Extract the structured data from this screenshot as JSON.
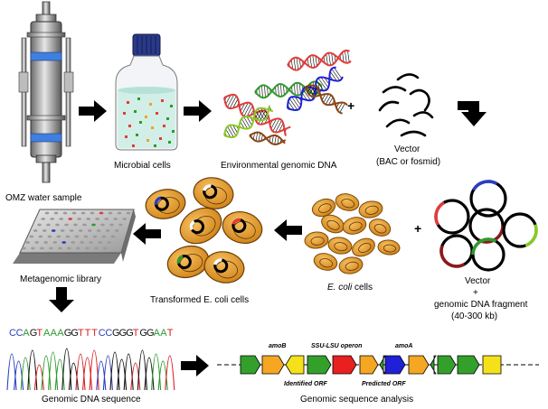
{
  "labels": {
    "omz_sample": "OMZ water sample",
    "microbial_cells": "Microbial cells",
    "env_dna": "Environmental genomic DNA",
    "plus": "+",
    "vector_title": "Vector",
    "vector_sub": "(BAC or fosmid)",
    "metagenomic_library": "Metagenomic library",
    "transformed_cells": "Transformed E. coli cells",
    "ecoli_italic": "E. coli",
    "ecoli_rest": " cells",
    "vector2_title": "Vector",
    "vector2_plus": "+",
    "vector2_fragment": "genomic DNA fragment",
    "vector2_size": "(40-300 kb)",
    "genomic_sequence": "Genomic DNA sequence",
    "sequence_analysis": "Genomic sequence analysis"
  },
  "sequence": {
    "letters": [
      "C",
      "C",
      "A",
      "G",
      "T",
      "A",
      "A",
      "A",
      "G",
      "G",
      "T",
      "T",
      "T",
      "C",
      "C",
      "G",
      "G",
      "G",
      "T",
      "G",
      "G",
      "A",
      "A",
      "T"
    ],
    "colors": {
      "A": "#2e9a2e",
      "C": "#2a3fbf",
      "G": "#111111",
      "T": "#d62020"
    }
  },
  "gene_map": {
    "labels": {
      "amoB": "amoB",
      "operon": "SSU-LSU operon",
      "amoA": "amoA",
      "identified": "Identified ORF",
      "predicted": "Predicted ORF"
    },
    "genes": [
      {
        "color": "#33a02c",
        "dir": "right"
      },
      {
        "color": "#f5a623",
        "dir": "right"
      },
      {
        "color": "#f5e11a",
        "dir": "left"
      },
      {
        "color": "#33a02c",
        "dir": "right"
      },
      {
        "color": "#e82020",
        "dir": "right"
      },
      {
        "color": "#f5a623",
        "dir": "right"
      },
      {
        "color": "#33a02c",
        "dir": "left"
      },
      {
        "color": "#2020d8",
        "dir": "right"
      },
      {
        "color": "#f5a623",
        "dir": "right"
      },
      {
        "color": "#33a02c",
        "dir": "left"
      },
      {
        "color": "#33a02c",
        "dir": "right"
      },
      {
        "color": "#33a02c",
        "dir": "right"
      },
      {
        "color": "#f5e11a",
        "dir": "none"
      }
    ]
  },
  "colors": {
    "ecoli_fill": "#f0a030",
    "ecoli_dark": "#b06a10",
    "water": "#cfeee6",
    "cap": "#2a3a8a",
    "column_blue": "#3f7fe0"
  }
}
